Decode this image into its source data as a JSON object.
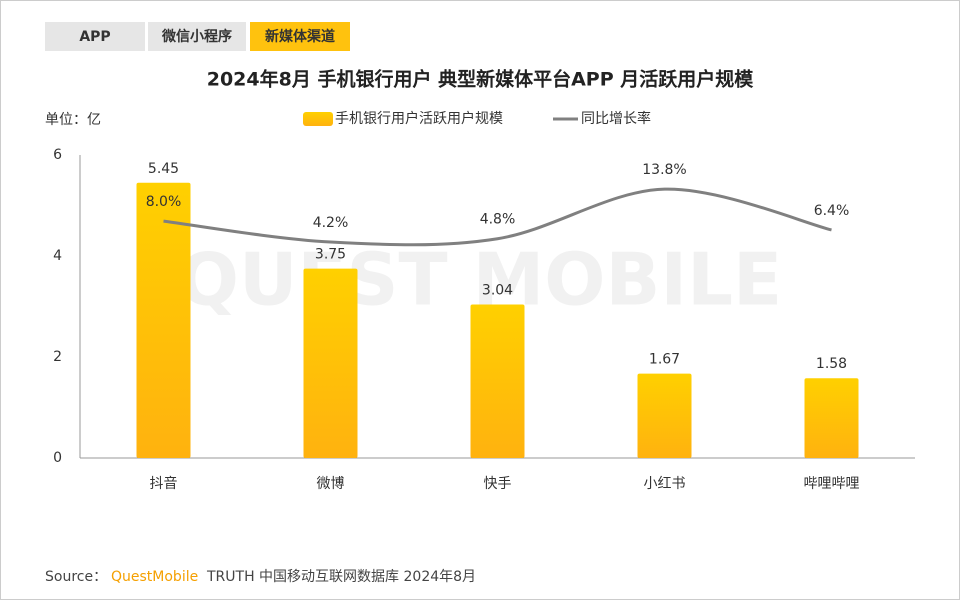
{
  "tabs": [
    "APP",
    "微信小程序",
    "新媒体渠道"
  ],
  "active_tab": 2,
  "watermark": "QUEST MOBILE",
  "chart_data": {
    "type": "bar_line",
    "title": "2024年8月 手机银行用户 典型新媒体平台APP 月活跃用户规模",
    "unit_label": "单位：亿",
    "categories": [
      "抖音",
      "微博",
      "快手",
      "小红书",
      "哔哩哔哩"
    ],
    "series": [
      {
        "name": "手机银行用户活跃用户规模",
        "type": "bar",
        "color": "#ffc20e",
        "values": [
          5.45,
          3.75,
          3.04,
          1.67,
          1.58
        ]
      },
      {
        "name": "同比增长率",
        "type": "line",
        "axis": "y2",
        "color": "#808080",
        "values": [
          8.0,
          4.2,
          4.8,
          13.8,
          6.4
        ],
        "value_labels": [
          "8.0%",
          "4.2%",
          "4.8%",
          "13.8%",
          "6.4%"
        ]
      }
    ],
    "ylim": [
      0,
      6
    ],
    "yticks": [
      0,
      2,
      4,
      6
    ],
    "y2lim": [
      -35,
      20
    ],
    "legend": "top"
  },
  "source": {
    "label": "Source：",
    "brand": "QuestMobile",
    "text": "TRUTH 中国移动互联网数据库 2024年8月"
  }
}
